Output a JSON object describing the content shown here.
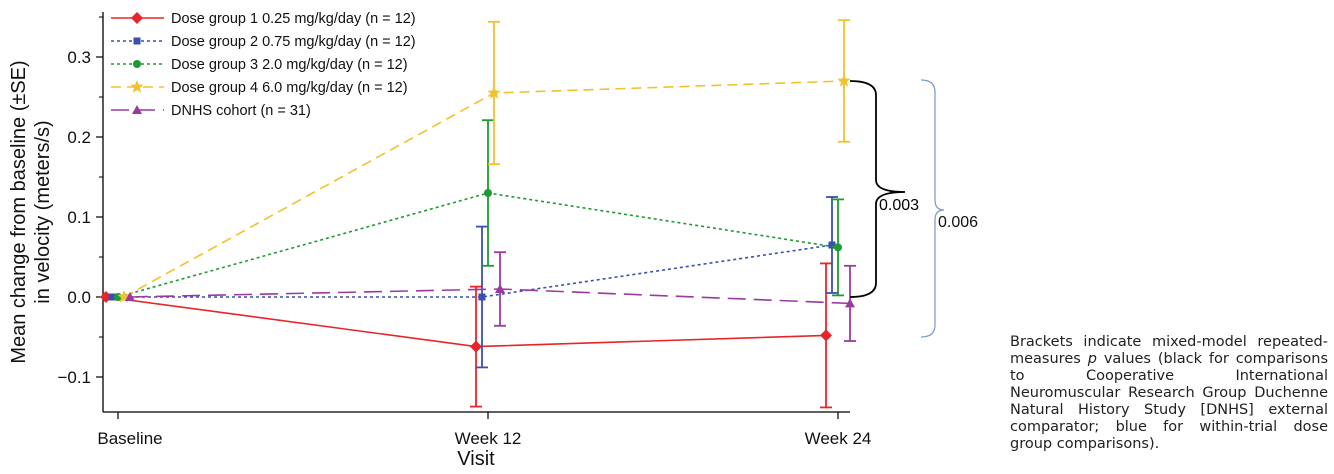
{
  "chart_data": {
    "type": "line",
    "xlabel": "Visit",
    "ylabel": "Mean change from baseline (±SE)",
    "ylabel2": "in velocity (meters/s)",
    "categories": [
      "Baseline",
      "Week 12",
      "Week 24"
    ],
    "ylim": [
      -0.145,
      0.36
    ],
    "yticks": [
      -0.1,
      0.0,
      0.1,
      0.2,
      0.3
    ],
    "ytick_labels": [
      "−0.1",
      "0.0",
      "0.1",
      "0.2",
      "0.3"
    ],
    "grid": false,
    "legend_position": "top-left",
    "series": [
      {
        "name": "Dose group 1 0.25 mg/kg/day (n = 12)",
        "color": "#e8262a",
        "marker": "diamond",
        "dash": "solid",
        "values": [
          0.0,
          -0.062,
          -0.048
        ],
        "err": [
          0,
          0.075,
          0.09
        ]
      },
      {
        "name": "Dose group 2 0.75 mg/kg/day (n = 12)",
        "color": "#3a4fb0",
        "marker": "square",
        "dash": "dotted",
        "values": [
          0.0,
          0.0,
          0.065
        ],
        "err": [
          0,
          0.088,
          0.06
        ]
      },
      {
        "name": "Dose group 3 2.0 mg/kg/day (n = 12)",
        "color": "#1e9a33",
        "marker": "circle",
        "dash": "dotted",
        "values": [
          0.0,
          0.13,
          0.062
        ],
        "err": [
          0,
          0.091,
          0.06
        ]
      },
      {
        "name": "Dose group 4 6.0 mg/kg/day (n = 12)",
        "color": "#f2c12e",
        "marker": "star",
        "dash": "dashed",
        "values": [
          0.0,
          0.255,
          0.27
        ],
        "err": [
          0,
          0.089,
          0.076
        ]
      },
      {
        "name": "DNHS cohort (n = 31)",
        "color": "#9b3a9e",
        "marker": "triangle",
        "dash": "longdash",
        "values": [
          0.0,
          0.01,
          -0.008
        ],
        "err": [
          0,
          0.046,
          0.047
        ]
      }
    ],
    "annotations": [
      {
        "label": "0.003",
        "color": "#000000",
        "y_top": 0.27,
        "y_bottom": 0.0
      },
      {
        "label": "0.006",
        "color": "#7c95cc",
        "y_top": 0.27,
        "y_bottom": -0.05
      }
    ]
  },
  "caption": {
    "before": "Brackets indicate mixed-model repeated-measures ",
    "p": "p",
    "after": " values (black for comparisons to Cooperative International Neuromuscular Research Group Duchenne Natural History Study [DNHS] external comparator; blue for within-trial dose group comparisons)."
  }
}
